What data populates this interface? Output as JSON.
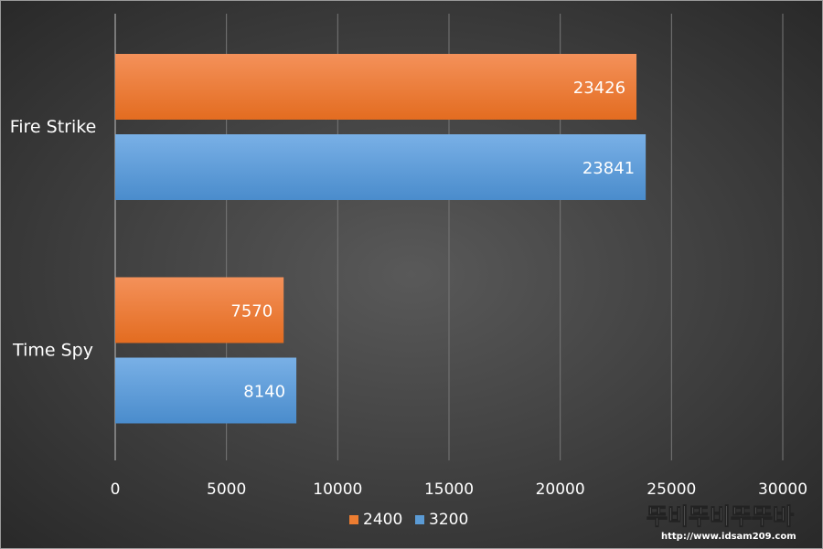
{
  "chart_data": {
    "type": "bar",
    "orientation": "horizontal",
    "categories": [
      "Fire Strike",
      "Time Spy"
    ],
    "series": [
      {
        "name": "2400",
        "values": [
          23426,
          7570
        ],
        "color": "#ed7d31"
      },
      {
        "name": "3200",
        "values": [
          23841,
          8140
        ],
        "color": "#5b9bd5"
      }
    ],
    "xlim": [
      0,
      30000
    ],
    "x_ticks": [
      0,
      5000,
      10000,
      15000,
      20000,
      25000,
      30000
    ],
    "grid": true,
    "legend_position": "bottom",
    "data_labels": true,
    "title": "",
    "xlabel": "",
    "ylabel": ""
  },
  "watermark": {
    "logo_text": "뚜비뚜비뚜뚜바",
    "url_text": "http://www.idsam209.com"
  }
}
